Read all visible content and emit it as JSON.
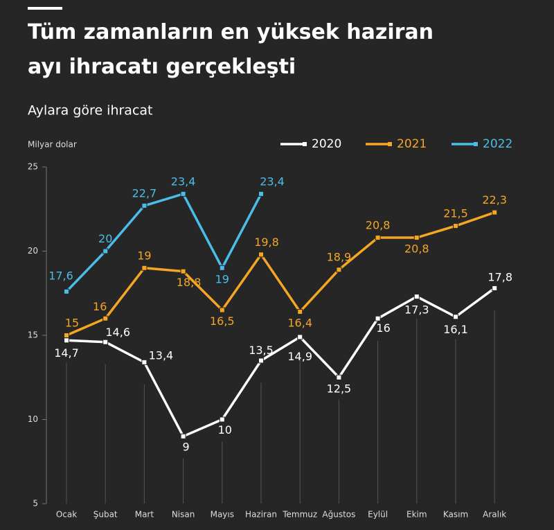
{
  "chart_data": {
    "type": "line",
    "title": "Tüm zamanların en yüksek haziran ayı ihracatı gerçekleşti",
    "subtitle": "Aylara göre ihracat",
    "y_label": "Milyar dolar",
    "categories": [
      "Ocak",
      "Şubat",
      "Mart",
      "Nisan",
      "Mayıs",
      "Haziran",
      "Temmuz",
      "Ağustos",
      "Eylül",
      "Ekim",
      "Kasım",
      "Aralık"
    ],
    "series": [
      {
        "name": "2020",
        "color": "#ffffff",
        "values": [
          14.7,
          14.6,
          13.4,
          9,
          10,
          13.5,
          14.9,
          12.5,
          16,
          17.3,
          16.1,
          17.8
        ],
        "value_labels": [
          "14,7",
          "14,6",
          "13,4",
          "9",
          "10",
          "13,5",
          "14,9",
          "12,5",
          "16",
          "17,3",
          "16,1",
          "17,8"
        ]
      },
      {
        "name": "2021",
        "color": "#f5a623",
        "values": [
          15,
          16,
          19,
          18.8,
          16.5,
          19.8,
          16.4,
          18.9,
          20.8,
          20.8,
          21.5,
          22.3
        ],
        "value_labels": [
          "15",
          "16",
          "19",
          "18,8",
          "16,5",
          "19,8",
          "16,4",
          "18,9",
          "20,8",
          "20,8",
          "21,5",
          "22,3"
        ]
      },
      {
        "name": "2022",
        "color": "#4bbde8",
        "values": [
          17.6,
          20,
          22.7,
          23.4,
          19,
          23.4,
          null,
          null,
          null,
          null,
          null,
          null
        ],
        "value_labels": [
          "17,6",
          "20",
          "22,7",
          "23,4",
          "19",
          "23,4",
          null,
          null,
          null,
          null,
          null,
          null
        ]
      }
    ],
    "ylim": [
      5,
      25
    ],
    "yticks": [
      5,
      10,
      15,
      20,
      25
    ]
  }
}
